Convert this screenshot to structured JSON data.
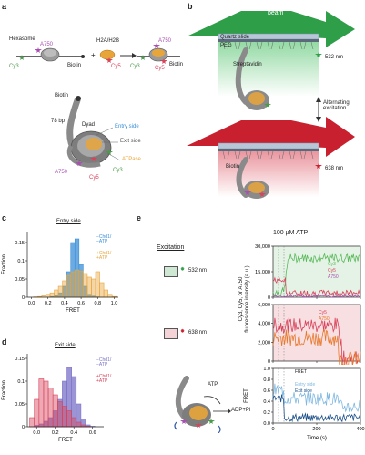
{
  "panels": {
    "a": "a",
    "b": "b",
    "c": "c",
    "d": "d",
    "e": "e"
  },
  "panel_a": {
    "hexasome": "Hexasome",
    "a750_left": "A750",
    "cy3_left": "Cy3",
    "biotin_left": "Biotin",
    "plus": "+",
    "h2a_h2b": "H2A/H2B",
    "cy5_mid": "Cy5",
    "arrow": "→",
    "a750_right": "A750",
    "cy3_right": "Cy3",
    "cy5_right": "Cy5",
    "biotin_right": "Biotin",
    "biotin_bottom": "Biotin",
    "bp78": "78 bp",
    "entry_side": "Entry side",
    "dyad": "Dyad",
    "exit_side": "Exit side",
    "atpase": "ATPase",
    "a750_bottom": "A750",
    "cy5_bottom": "Cy5",
    "cy3_bottom": "Cy3"
  },
  "panel_b": {
    "tirf_beam": "TIRF\nbeam",
    "quartz_slide": "Quartz slide",
    "peg": "PEG",
    "streptavidin": "Streptavidin",
    "nm532": "532 nm",
    "alternating": "Alternating\nexcitation",
    "biotin": "Biotin",
    "nm638": "638 nm"
  },
  "panel_c": {
    "title": "Entry side",
    "legend": [
      {
        "text": "−Chd1/\n−ATP",
        "color": "#3a8fd8"
      },
      {
        "text": "+Chd1/\n+ATP",
        "color": "#e8a53a"
      }
    ]
  },
  "panel_d": {
    "title": "Exit side",
    "legend": [
      {
        "text": "−Chd1/\n−ATP",
        "color": "#7a72c8"
      },
      {
        "text": "+Chd1/\n+ATP",
        "color": "#d8425a"
      }
    ]
  },
  "panel_e": {
    "excitation": "Excitation",
    "nm532": "532 nm",
    "nm638": "638 nm",
    "atp_conc": "100 µM ATP",
    "atp": "ATP",
    "adp": "ADP+Pi",
    "yaxis_fluor": "Cy3, Cy5, or A750\nfluorescence intensity (a.u.)",
    "yaxis_fret": "FRET",
    "legend_top": [
      {
        "text": "Cy3",
        "color": "#5cb85c"
      },
      {
        "text": "Cy5",
        "color": "#d8425a"
      },
      {
        "text": "A750",
        "color": "#a84fb0"
      }
    ],
    "legend_mid": [
      {
        "text": "Cy5",
        "color": "#d8425a"
      },
      {
        "text": "A750",
        "color": "#e8782a"
      }
    ],
    "fret_title": "FRET",
    "legend_bot": [
      {
        "text": "Entry side",
        "color": "#7fb8e0"
      },
      {
        "text": "Exit side",
        "color": "#1a4f8a"
      }
    ]
  },
  "chart_data": [
    {
      "type": "bar",
      "title": "Entry side",
      "xlabel": "FRET",
      "ylabel": "Fraction",
      "xlim": [
        -0.05,
        1.05
      ],
      "ylim": [
        0,
        0.18
      ],
      "xticks": [
        "0.0",
        "0.2",
        "0.4",
        "0.6",
        "0.8",
        "1.0"
      ],
      "yticks": [
        "0",
        "0.05",
        "0.1",
        "0.15"
      ],
      "bin_centers": [
        0.0,
        0.05,
        0.1,
        0.15,
        0.2,
        0.25,
        0.3,
        0.35,
        0.4,
        0.45,
        0.5,
        0.55,
        0.6,
        0.65,
        0.7,
        0.75,
        0.8,
        0.85,
        0.9,
        0.95,
        1.0
      ],
      "series": [
        {
          "name": "−Chd1/ −ATP",
          "color": "#3a8fd8",
          "values": [
            0,
            0,
            0,
            0,
            0,
            0.002,
            0.005,
            0.012,
            0.03,
            0.07,
            0.15,
            0.16,
            0.09,
            0.03,
            0.008,
            0.003,
            0.001,
            0,
            0,
            0,
            0
          ]
        },
        {
          "name": "+Chd1/ +ATP",
          "color": "#e8a53a",
          "values": [
            0,
            0.001,
            0.002,
            0.004,
            0.008,
            0.012,
            0.02,
            0.03,
            0.045,
            0.06,
            0.07,
            0.075,
            0.072,
            0.065,
            0.055,
            0.05,
            0.07,
            0.04,
            0.02,
            0.008,
            0.002
          ]
        }
      ]
    },
    {
      "type": "bar",
      "title": "Exit side",
      "xlabel": "FRET",
      "ylabel": "Fraction",
      "xlim": [
        -0.1,
        0.72
      ],
      "ylim": [
        0,
        0.16
      ],
      "xticks": [
        "0.0",
        "0.2",
        "0.4",
        "0.6"
      ],
      "yticks": [
        "0",
        "0.05",
        "0.1",
        "0.15"
      ],
      "bin_centers": [
        -0.05,
        0.0,
        0.05,
        0.1,
        0.15,
        0.2,
        0.25,
        0.3,
        0.35,
        0.4,
        0.45,
        0.5,
        0.55,
        0.6,
        0.65
      ],
      "series": [
        {
          "name": "−Chd1/ −ATP",
          "color": "#7a72c8",
          "values": [
            0,
            0.003,
            0.006,
            0.012,
            0.02,
            0.035,
            0.06,
            0.1,
            0.13,
            0.11,
            0.05,
            0.015,
            0.004,
            0.001,
            0
          ]
        },
        {
          "name": "+Chd1/ +ATP",
          "color": "#d8425a",
          "values": [
            0.02,
            0.06,
            0.105,
            0.1,
            0.085,
            0.07,
            0.055,
            0.045,
            0.035,
            0.02,
            0.01,
            0.004,
            0.001,
            0,
            0
          ]
        }
      ]
    },
    {
      "type": "line",
      "xlim": [
        0,
        400
      ],
      "ylim": [
        0,
        30000
      ],
      "xticks": [
        "0",
        "200",
        "400"
      ],
      "yticks": [
        "0",
        "15,000",
        "30,000"
      ],
      "series": [
        {
          "name": "Cy3",
          "color": "#5cb85c"
        },
        {
          "name": "Cy5",
          "color": "#d8425a"
        },
        {
          "name": "A750",
          "color": "#a84fb0"
        }
      ]
    },
    {
      "type": "line",
      "xlim": [
        0,
        400
      ],
      "ylim": [
        0,
        6000
      ],
      "xticks": [
        "0",
        "200",
        "400"
      ],
      "yticks": [
        "0",
        "2,000",
        "4,000",
        "6,000"
      ],
      "series": [
        {
          "name": "Cy5",
          "color": "#d8425a"
        },
        {
          "name": "A750",
          "color": "#e8782a"
        }
      ]
    },
    {
      "type": "line",
      "xlabel": "Time (s)",
      "ylabel": "FRET",
      "xlim": [
        0,
        400
      ],
      "ylim": [
        0,
        1.0
      ],
      "xticks": [
        "0",
        "200",
        "400"
      ],
      "yticks": [
        "0.0",
        "0.2",
        "0.4",
        "0.6",
        "0.8",
        "1.0"
      ],
      "series": [
        {
          "name": "Entry side",
          "color": "#7fb8e0"
        },
        {
          "name": "Exit side",
          "color": "#1a4f8a"
        }
      ]
    }
  ]
}
